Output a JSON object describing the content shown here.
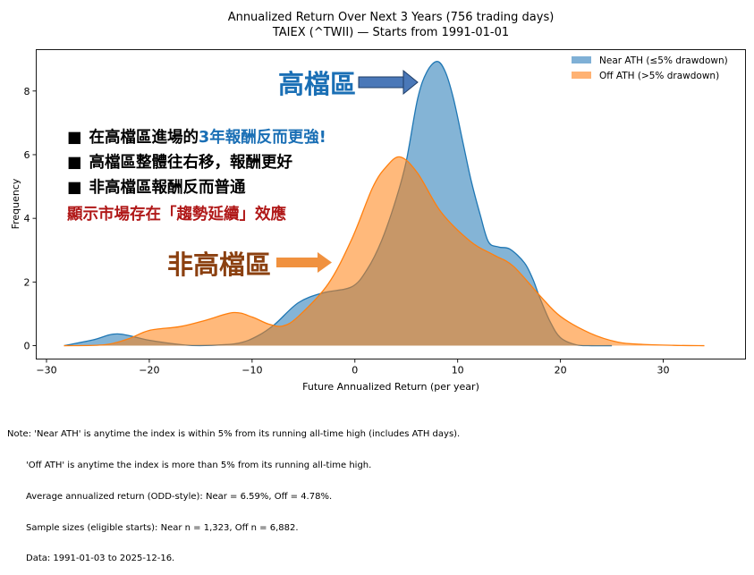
{
  "chart_data": {
    "type": "area",
    "title": "Annualized Return Over Next 3 Years (756 trading days)",
    "subtitle": "TAIEX (^TWII) — Starts from 1991-01-01",
    "xlabel": "Future Annualized Return (per year)",
    "ylabel": "Frequency",
    "xlim": [
      -31,
      38
    ],
    "ylim": [
      -0.42,
      9.3
    ],
    "xticks": [
      -30,
      -20,
      -10,
      0,
      10,
      20,
      30
    ],
    "xtick_labels": [
      "−30",
      "−20",
      "−10",
      "0",
      "10",
      "20",
      "30"
    ],
    "yticks": [
      0,
      2,
      4,
      6,
      8
    ],
    "ytick_labels": [
      "0",
      "2",
      "4",
      "6",
      "8"
    ],
    "grid": false,
    "legend_position": "top-right",
    "series": [
      {
        "name": "Near ATH (≤5% drawdown)",
        "color": "#1f77b4",
        "fill": "#7fb0d6",
        "x": [
          -28.3,
          -25.5,
          -23.1,
          -20,
          -16.5,
          -14,
          -11.3,
          -9.5,
          -7.8,
          -5.5,
          -3.1,
          -0.3,
          1.2,
          2.6,
          4,
          5,
          6.1,
          7,
          8,
          8.8,
          9.6,
          10.5,
          11.3,
          12.2,
          13,
          14,
          15.1,
          16.5,
          17.3,
          18,
          19,
          20,
          21.5,
          23,
          25
        ],
        "y": [
          0,
          0.18,
          0.37,
          0.17,
          0.02,
          0.01,
          0.08,
          0.3,
          0.67,
          1.35,
          1.66,
          1.85,
          2.4,
          3.3,
          4.6,
          5.8,
          7.75,
          8.6,
          8.93,
          8.6,
          7.75,
          6.4,
          5.2,
          4.1,
          3.26,
          3.1,
          3.03,
          2.6,
          2.1,
          1.5,
          0.75,
          0.25,
          0.03,
          0,
          0
        ]
      },
      {
        "name": "Off ATH (>5% drawdown)",
        "color": "#ff7f0e",
        "fill": "#ffb273",
        "x": [
          -28.3,
          -24.3,
          -22,
          -20,
          -17,
          -14.5,
          -11.8,
          -10,
          -8.4,
          -7,
          -5.5,
          -2.6,
          -0.3,
          1.7,
          3,
          4.4,
          6.1,
          8.4,
          11.3,
          13.5,
          15.4,
          18,
          20,
          22.9,
          25.6,
          28,
          31,
          34
        ],
        "y": [
          0,
          0.03,
          0.22,
          0.48,
          0.6,
          0.8,
          1.04,
          0.9,
          0.68,
          0.62,
          0.92,
          1.94,
          3.35,
          4.95,
          5.6,
          5.93,
          5.42,
          4.19,
          3.26,
          2.85,
          2.5,
          1.57,
          0.92,
          0.39,
          0.11,
          0.04,
          0.01,
          0
        ]
      }
    ],
    "annotations": {
      "high_zone_label": "高檔區",
      "non_high_zone_label": "非高檔區",
      "bullet_symbol": "■",
      "bullet1_prefix": "在高檔區進場的",
      "bullet1_highlight": "3年報酬反而更強!",
      "bullet2": "高檔區整體往右移，報酬更好",
      "bullet3": "非高檔區報酬反而普通",
      "conclusion": "顯示市場存在「趨勢延續」效應",
      "colors": {
        "blue": "#1a6fb5",
        "brown": "#8b4010",
        "red": "#b01818",
        "blue_arrow": "#4a78b8",
        "orange_arrow": "#f0913f"
      }
    }
  },
  "note": {
    "line1": "Note: 'Near ATH' is anytime the index is within 5% from its running all-time high (includes ATH days).",
    "line2": "'Off ATH' is anytime the index is more than 5% from its running all-time high.",
    "line3": "Average annualized return (ODD-style): Near = 6.59%, Off = 4.78%.",
    "line4": "Sample sizes (eligible starts): Near n = 1,323, Off n = 6,882.",
    "line5": "Data: 1991-01-03 to 2025-12-16."
  }
}
